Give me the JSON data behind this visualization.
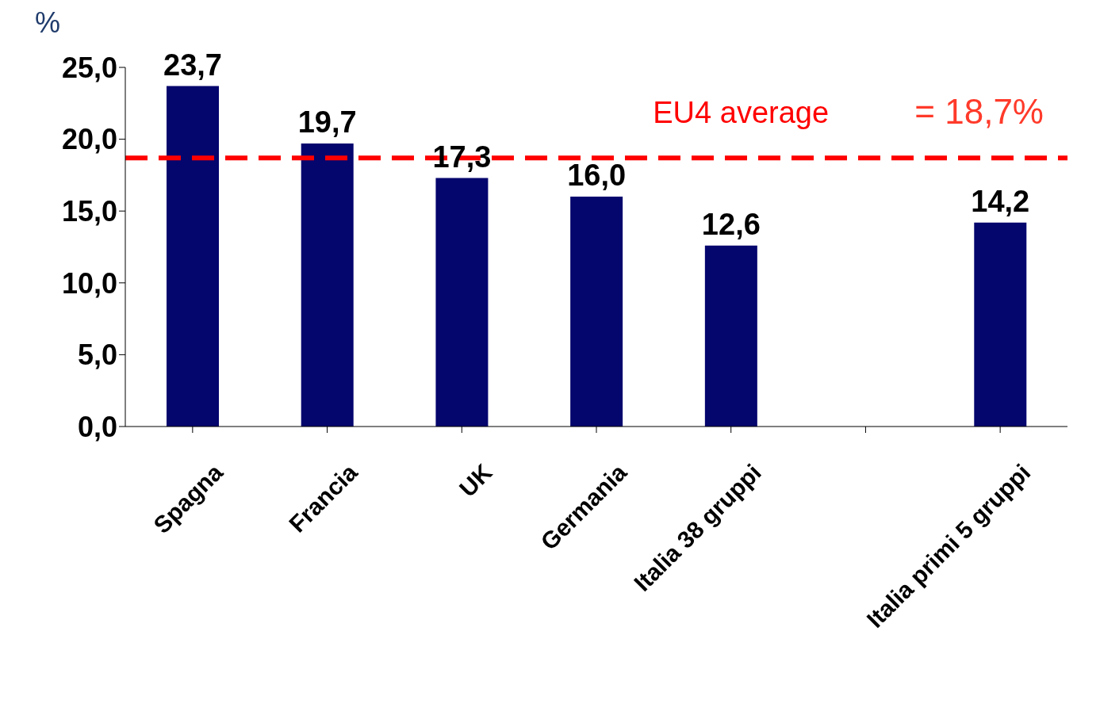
{
  "chart_data": {
    "type": "bar",
    "ylabel": "%",
    "categories": [
      "Spagna",
      "Francia",
      "UK",
      "Germania",
      "Italia 38 gruppi",
      null,
      "Italia primi 5 gruppi"
    ],
    "values": [
      23.7,
      19.7,
      17.3,
      16.0,
      12.6,
      null,
      14.2
    ],
    "value_labels": [
      "23,7",
      "19,7",
      "17,3",
      "16,0",
      "12,6",
      null,
      "14,2"
    ],
    "color": "#05056e",
    "ylim": [
      0,
      25
    ],
    "yticks": [
      {
        "value": 0,
        "label": "0,0"
      },
      {
        "value": 5,
        "label": "5,0"
      },
      {
        "value": 10,
        "label": "10,0"
      },
      {
        "value": 15,
        "label": "15,0"
      },
      {
        "value": 20,
        "label": "20,0"
      },
      {
        "value": 25,
        "label": "25,0"
      }
    ],
    "grid": false,
    "legend": false,
    "ref_lines": [
      {
        "axis": "y",
        "value": 18.7,
        "label": "EU4 average",
        "color": "#ff0000",
        "line_style": "dashed"
      }
    ],
    "annotations": [
      "= 18,7%"
    ]
  }
}
